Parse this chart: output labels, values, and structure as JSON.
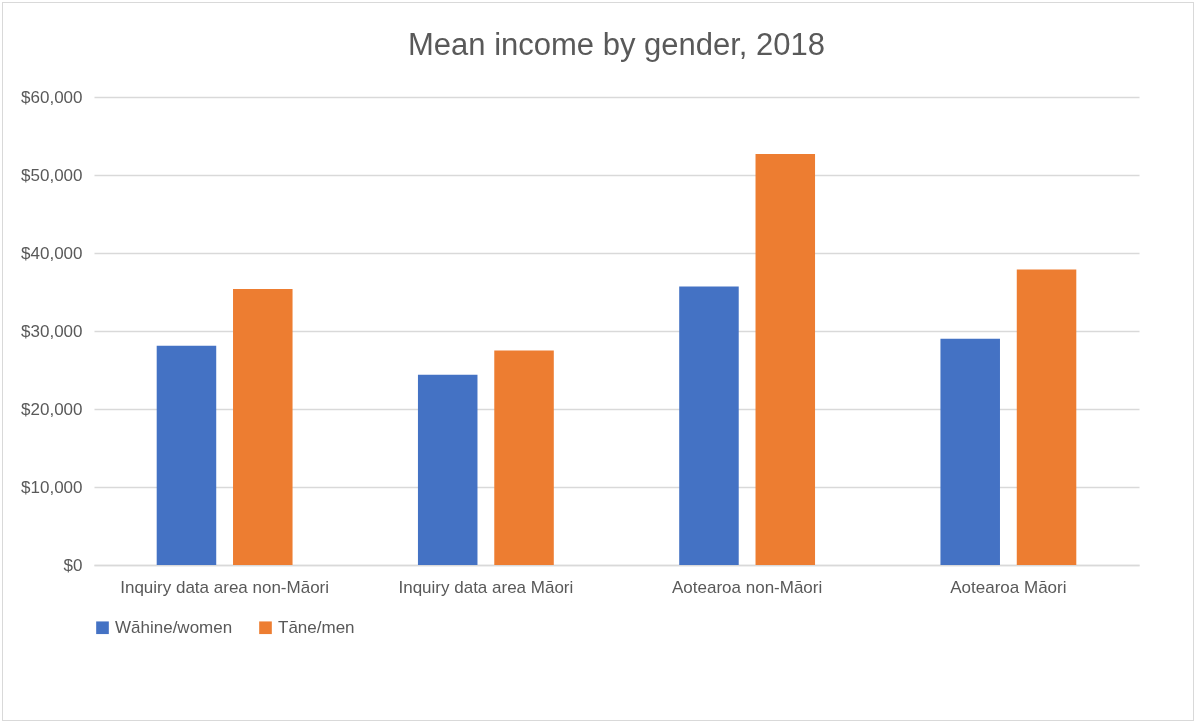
{
  "chart_data": {
    "type": "bar",
    "title": "Mean income by gender, 2018",
    "categories": [
      "Inquiry data area non-Māori",
      "Inquiry data area Māori",
      "Aotearoa non-Māori",
      "Aotearoa Māori"
    ],
    "series": [
      {
        "name": "Wāhine/women",
        "color": "#4472c4",
        "values": [
          28100,
          24400,
          35700,
          29000
        ]
      },
      {
        "name": "Tāne/men",
        "color": "#ed7d31",
        "values": [
          35400,
          27500,
          52700,
          37900
        ]
      }
    ],
    "ylim": [
      0,
      60000
    ],
    "yticks": [
      {
        "value": 0,
        "label": "$0"
      },
      {
        "value": 10000,
        "label": "$10,000"
      },
      {
        "value": 20000,
        "label": "$20,000"
      },
      {
        "value": 30000,
        "label": "$30,000"
      },
      {
        "value": 40000,
        "label": "$40,000"
      },
      {
        "value": 50000,
        "label": "$50,000"
      },
      {
        "value": 60000,
        "label": "$60,000"
      }
    ],
    "grid": "y",
    "legend": "bottom"
  }
}
